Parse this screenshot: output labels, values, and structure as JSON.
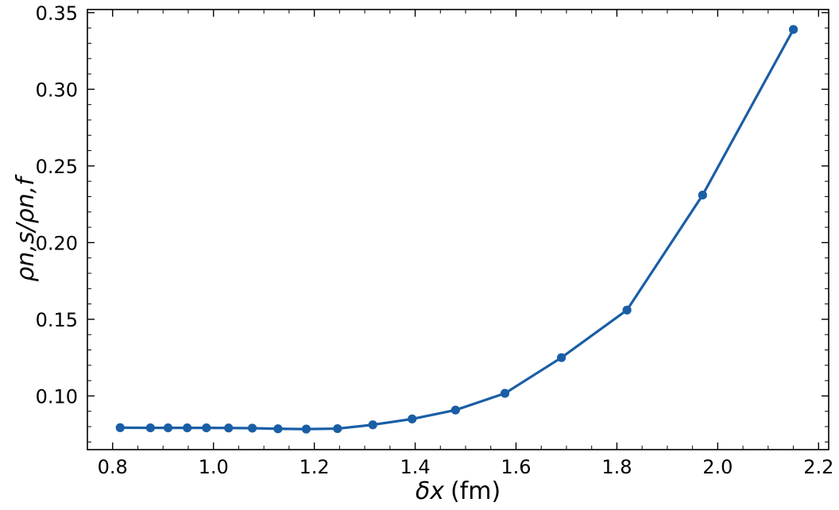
{
  "chart_data": {
    "type": "line",
    "xlabel_symbol": "δx",
    "xlabel_unit": "(fm)",
    "ylabel": "ρn,s/ρn,f",
    "xlim": [
      0.75,
      2.22
    ],
    "ylim": [
      0.065,
      0.352
    ],
    "xticks": [
      "0.8",
      "1.0",
      "1.2",
      "1.4",
      "1.6",
      "1.8",
      "2.0",
      "2.2"
    ],
    "yticks": [
      "0.10",
      "0.15",
      "0.20",
      "0.25",
      "0.30",
      "0.35"
    ],
    "grid": false,
    "series": [
      {
        "color": "#1a5ea6",
        "x": [
          0.815,
          0.875,
          0.91,
          0.948,
          0.986,
          1.03,
          1.077,
          1.128,
          1.184,
          1.246,
          1.316,
          1.394,
          1.48,
          1.578,
          1.69,
          1.82,
          1.97,
          2.15
        ],
        "y": [
          0.0793,
          0.0792,
          0.0792,
          0.0792,
          0.0792,
          0.0791,
          0.079,
          0.0786,
          0.0784,
          0.0787,
          0.0812,
          0.085,
          0.0908,
          0.1017,
          0.125,
          0.156,
          0.231,
          0.339
        ]
      }
    ]
  }
}
